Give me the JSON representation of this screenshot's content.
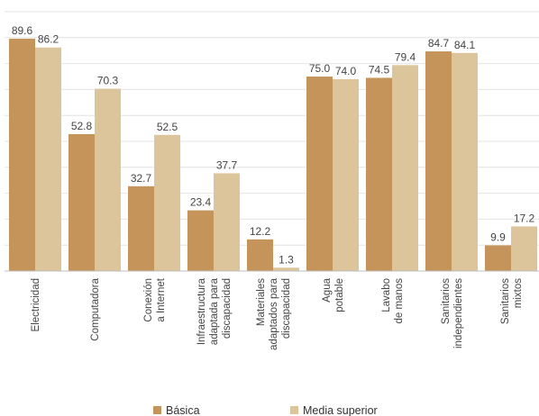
{
  "chart_data": {
    "type": "bar",
    "categories": [
      [
        "Electricidad"
      ],
      [
        "Computadora"
      ],
      [
        "Conexión",
        "a Internet"
      ],
      [
        "Infraestructura",
        "adaptada para",
        "discapacidad"
      ],
      [
        "Materiales",
        "adaptados para",
        "discapacidad"
      ],
      [
        "Agua",
        "potable"
      ],
      [
        "Lavabo",
        "de manos"
      ],
      [
        "Sanitarios",
        "independientes"
      ],
      [
        "Sanitarios",
        "mixtos"
      ]
    ],
    "series": [
      {
        "name": "Básica",
        "color": "#c4945a",
        "values": [
          89.6,
          52.8,
          32.7,
          23.4,
          12.2,
          75.0,
          74.5,
          84.7,
          9.9
        ]
      },
      {
        "name": "Media superior",
        "color": "#dcc59b",
        "values": [
          86.2,
          70.3,
          52.5,
          37.7,
          1.3,
          74.0,
          79.4,
          84.1,
          17.2
        ]
      }
    ],
    "value_labels": [
      [
        "89.6",
        "52.8",
        "32.7",
        "23.4",
        "12.2",
        "75.0",
        "74.5",
        "84.7",
        "9.9"
      ],
      [
        "86.2",
        "70.3",
        "52.5",
        "37.7",
        "1.3",
        "74.0",
        "79.4",
        "84.1",
        "17.2"
      ]
    ],
    "ylim": [
      0,
      100
    ],
    "grid": true,
    "legend_position": "bottom",
    "label_rotation": "vertical",
    "colors": {
      "grid": "#e4e4e4",
      "axis": "#bdbdbd",
      "text": "#444444"
    }
  }
}
